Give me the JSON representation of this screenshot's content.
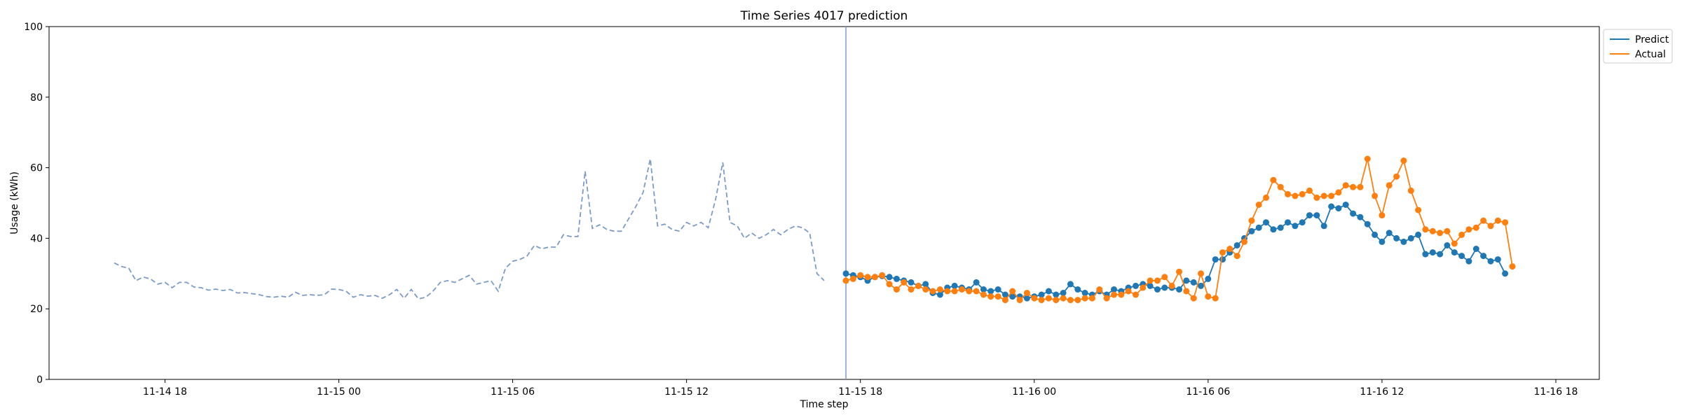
{
  "chart_data": {
    "type": "line",
    "title": "Time Series 4017 prediction",
    "xlabel": "Time step",
    "ylabel": "Usage (kWh)",
    "ylim": [
      0,
      100
    ],
    "yticks": [
      0,
      20,
      40,
      60,
      80,
      100
    ],
    "xlim": [
      "2024-11-14 14:00",
      "2024-11-16 19:30"
    ],
    "xtick_values": [
      "2024-11-14 18:00",
      "2024-11-15 00:00",
      "2024-11-15 06:00",
      "2024-11-15 12:00",
      "2024-11-15 18:00",
      "2024-11-16 00:00",
      "2024-11-16 06:00",
      "2024-11-16 12:00",
      "2024-11-16 18:00"
    ],
    "xtick_labels": [
      "11-14 18",
      "11-15 00",
      "11-15 06",
      "11-15 12",
      "11-15 18",
      "11-16 00",
      "11-16 06",
      "11-16 12",
      "11-16 18"
    ],
    "prediction_start": "2024-11-15 17:30",
    "interval_minutes": 15,
    "legend": {
      "position": "top-right",
      "entries": [
        "Predict",
        "Actual"
      ]
    },
    "colors": {
      "history": "#7b9cc8",
      "predict": "#1f77b4",
      "actual": "#ff7f0e",
      "divider": "#7b9cc8"
    },
    "series": [
      {
        "name": "History",
        "start": "2024-11-14 16:15",
        "values": [
          33.0,
          32.0,
          31.5,
          28.0,
          29.0,
          28.5,
          27.0,
          27.5,
          26.0,
          27.5,
          27.5,
          26.2,
          26.0,
          25.3,
          25.6,
          25.2,
          25.5,
          24.5,
          24.6,
          24.3,
          24.0,
          23.5,
          23.3,
          23.6,
          23.3,
          24.7,
          23.8,
          24.0,
          23.8,
          24.0,
          25.6,
          25.5,
          25.0,
          23.3,
          24.0,
          23.6,
          23.8,
          23.0,
          24.0,
          25.5,
          23.0,
          25.5,
          22.8,
          23.3,
          25.0,
          27.5,
          28.0,
          27.5,
          28.5,
          29.5,
          27.0,
          27.5,
          28.0,
          25.0,
          31.5,
          33.5,
          34.0,
          35.0,
          38.0,
          37.0,
          37.5,
          37.5,
          41.0,
          40.5,
          40.5,
          59.0,
          42.8,
          43.8,
          42.5,
          42.0,
          42.0,
          45.5,
          49.0,
          53.0,
          62.5,
          43.5,
          44.0,
          42.5,
          42.0,
          44.5,
          43.5,
          44.5,
          43.0,
          51.0,
          61.5,
          44.5,
          43.5,
          40.0,
          41.5,
          40.0,
          41.0,
          42.5,
          41.0,
          42.5,
          43.5,
          43.0,
          41.5,
          30.0,
          28.0
        ]
      },
      {
        "name": "Predict",
        "start": "2024-11-15 17:30",
        "values": [
          30.0,
          29.5,
          29.0,
          28.0,
          29.0,
          29.3,
          29.0,
          28.5,
          28.0,
          27.5,
          26.5,
          27.0,
          24.5,
          24.0,
          26.0,
          26.5,
          26.0,
          25.5,
          27.5,
          25.5,
          25.0,
          25.5,
          24.0,
          23.5,
          23.5,
          23.0,
          23.5,
          24.0,
          25.0,
          24.0,
          24.5,
          27.0,
          25.5,
          24.5,
          24.0,
          25.0,
          24.0,
          25.5,
          25.0,
          26.0,
          26.5,
          27.0,
          26.5,
          25.5,
          26.0,
          26.0,
          25.5,
          28.0,
          27.5,
          26.5,
          28.5,
          34.0,
          34.0,
          36.0,
          38.0,
          40.0,
          42.0,
          43.0,
          44.5,
          42.5,
          43.0,
          44.5,
          43.5,
          44.5,
          46.5,
          46.5,
          43.5,
          49.0,
          48.5,
          49.5,
          47.0,
          46.0,
          44.0,
          41.0,
          39.0,
          41.5,
          40.0,
          39.0,
          40.0,
          41.0,
          35.5,
          36.0,
          35.5,
          38.0,
          36.0,
          35.0,
          33.5,
          37.0,
          35.0,
          33.5,
          34.0,
          30.0
        ]
      },
      {
        "name": "Actual",
        "start": "2024-11-15 17:30",
        "values": [
          28.0,
          28.5,
          29.5,
          29.0,
          29.0,
          29.5,
          27.0,
          25.5,
          27.5,
          25.5,
          26.5,
          25.5,
          25.0,
          25.5,
          25.0,
          25.0,
          25.5,
          25.0,
          25.0,
          24.0,
          23.5,
          23.5,
          22.5,
          25.0,
          22.5,
          24.5,
          23.0,
          22.5,
          23.0,
          22.5,
          23.0,
          22.5,
          22.5,
          23.0,
          23.0,
          25.5,
          23.0,
          24.0,
          24.0,
          25.0,
          24.0,
          26.0,
          28.0,
          28.0,
          29.0,
          26.5,
          30.5,
          25.0,
          23.0,
          30.0,
          23.5,
          23.0,
          36.0,
          37.0,
          35.0,
          39.0,
          45.0,
          49.5,
          51.5,
          56.5,
          54.5,
          52.5,
          52.0,
          52.5,
          53.5,
          51.5,
          52.0,
          52.0,
          53.0,
          55.0,
          54.5,
          54.5,
          62.5,
          52.0,
          46.5,
          55.0,
          57.5,
          62.0,
          53.5,
          48.0,
          42.5,
          42.0,
          41.5,
          42.0,
          38.5,
          41.0,
          42.5,
          43.0,
          45.0,
          43.5,
          45.0,
          44.5,
          32.0
        ]
      }
    ]
  }
}
